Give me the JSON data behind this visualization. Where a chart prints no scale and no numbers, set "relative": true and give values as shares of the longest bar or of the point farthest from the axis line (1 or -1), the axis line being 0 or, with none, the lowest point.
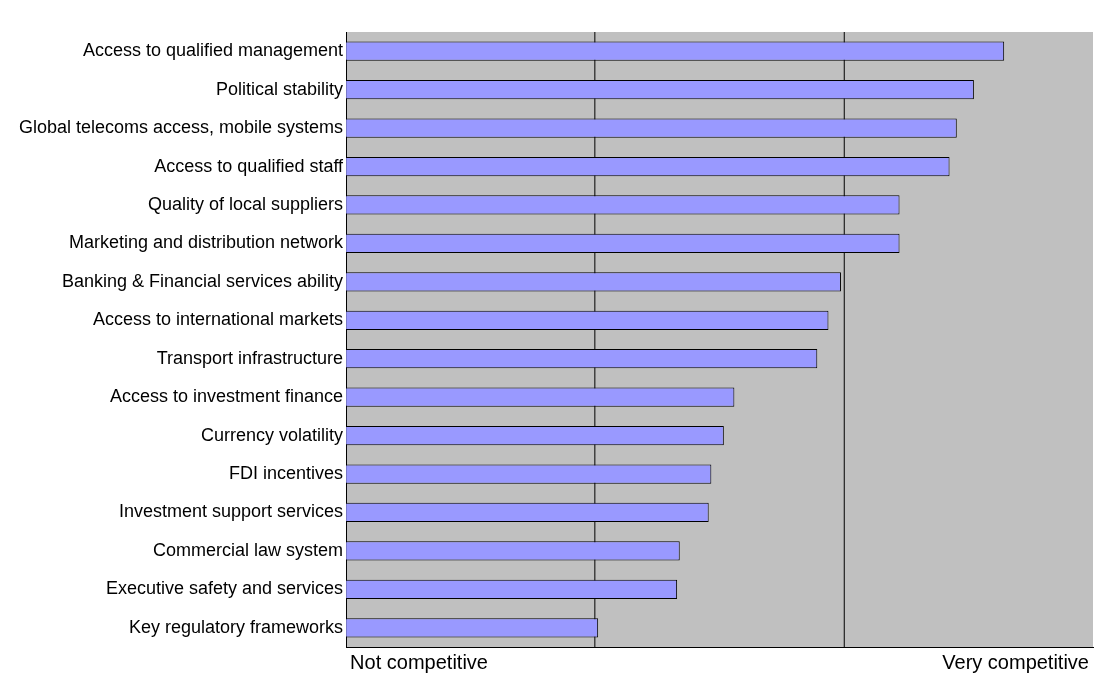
{
  "chart_data": {
    "type": "bar",
    "orientation": "horizontal",
    "relative": true,
    "legend": false,
    "ref_lines": [
      {
        "axis": "x",
        "value": 0.378,
        "color": "#000000"
      },
      {
        "axis": "x",
        "value": 0.757,
        "color": "#000000"
      }
    ],
    "categories": [
      "Access to qualified management",
      "Political stability",
      "Global telecoms access, mobile systems",
      "Access to qualified staff",
      "Quality of local suppliers",
      "Marketing and distribution network",
      "Banking & Financial services ability",
      "Access to international markets",
      "Transport infrastructure",
      "Access to investment finance",
      "Currency volatility",
      "FDI incentives",
      "Investment support services",
      "Commercial law system",
      "Executive safety and services",
      "Key regulatory frameworks"
    ],
    "values": [
      1,
      0.954,
      0.928,
      0.917,
      0.841,
      0.841,
      0.752,
      0.733,
      0.716,
      0.59,
      0.574,
      0.555,
      0.551,
      0.507,
      0.503,
      0.383
    ],
    "color": "#9999ff",
    "annotations": [
      "Not competitive",
      "Very competitive"
    ]
  }
}
